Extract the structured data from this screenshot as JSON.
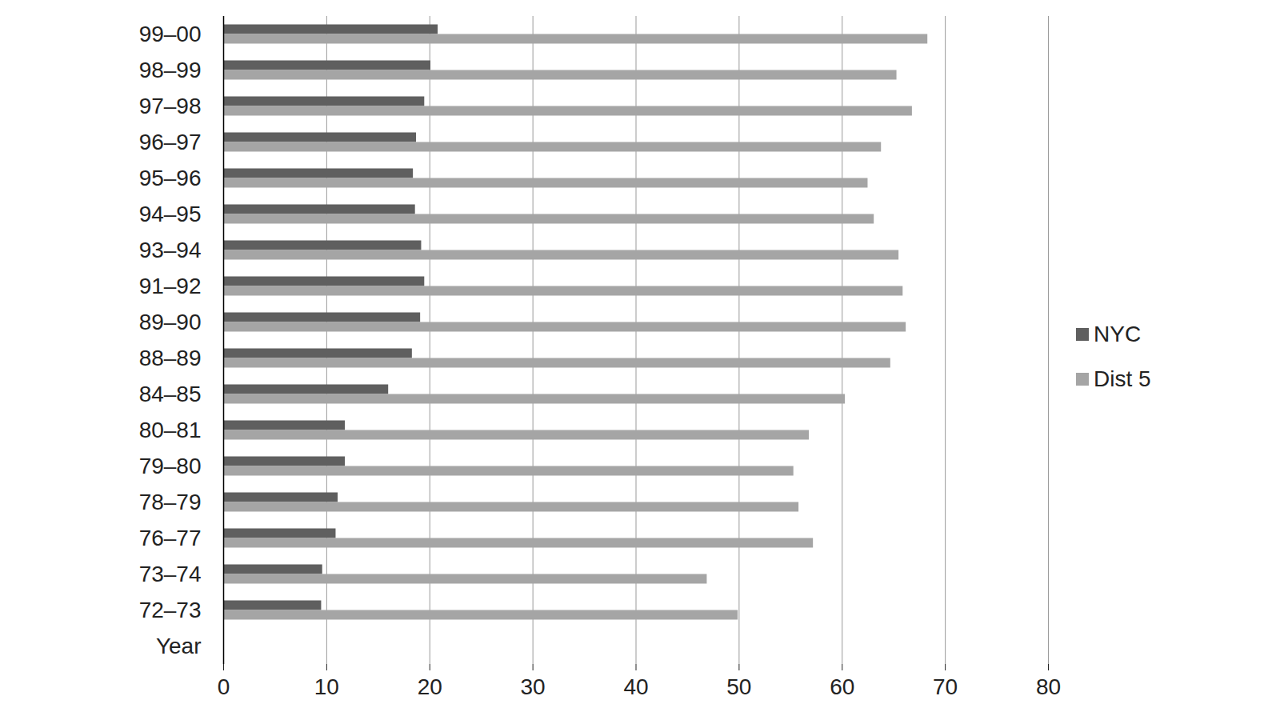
{
  "chart_data": {
    "type": "bar",
    "orientation": "horizontal",
    "categories": [
      "99–00",
      "98–99",
      "97–98",
      "96–97",
      "95–96",
      "94–95",
      "93–94",
      "91–92",
      "89–90",
      "88–89",
      "84–85",
      "80–81",
      "79–80",
      "78–79",
      "76–77",
      "73–74",
      "72–73",
      "Year"
    ],
    "series": [
      {
        "name": "NYC",
        "color": "#5f5f5f",
        "values": [
          20.8,
          20.1,
          19.5,
          18.7,
          18.4,
          18.6,
          19.2,
          19.5,
          19.1,
          18.3,
          16.0,
          11.8,
          11.8,
          11.1,
          10.9,
          9.6,
          9.5,
          null
        ]
      },
      {
        "name": "Dist 5",
        "color": "#a5a5a5",
        "values": [
          68.3,
          65.3,
          66.8,
          63.8,
          62.5,
          63.1,
          65.5,
          65.9,
          66.2,
          64.7,
          60.3,
          56.8,
          55.3,
          55.8,
          57.2,
          46.9,
          49.9,
          null
        ]
      }
    ],
    "xlim": [
      0,
      80
    ],
    "xticks": [
      0,
      10,
      20,
      30,
      40,
      50,
      60,
      70,
      80
    ],
    "grid": true,
    "legend": "right"
  }
}
